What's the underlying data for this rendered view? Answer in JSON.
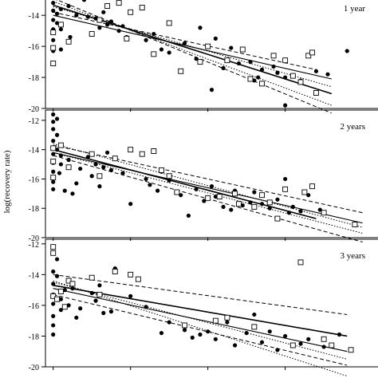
{
  "figure": {
    "ylabel": "log(recovery rate)"
  },
  "chart_data": [
    {
      "type": "scatter",
      "panel_label": "1 year",
      "xlim": [
        -10,
        420
      ],
      "ylim": [
        -20,
        -12.5
      ],
      "yticks": [
        -14,
        -16,
        -18,
        -20
      ],
      "ytick_labels": [
        "-14",
        "-16",
        "-18",
        "-20"
      ],
      "xticks": [
        0,
        100,
        200,
        300
      ],
      "filled_points": [
        [
          0,
          -13.2
        ],
        [
          0,
          -13.7
        ],
        [
          0,
          -14.3
        ],
        [
          0,
          -14.9
        ],
        [
          0,
          -15.6
        ],
        [
          0,
          -16.3
        ],
        [
          5,
          -12.9
        ],
        [
          5,
          -13.9
        ],
        [
          5,
          -14.5
        ],
        [
          10,
          -13.6
        ],
        [
          10,
          -14.9
        ],
        [
          10,
          -16.2
        ],
        [
          20,
          -13.4
        ],
        [
          22,
          -15.4
        ],
        [
          30,
          -14.0
        ],
        [
          40,
          -13.0
        ],
        [
          45,
          -14.1
        ],
        [
          55,
          -14.2
        ],
        [
          60,
          -14.8
        ],
        [
          65,
          -13.8
        ],
        [
          70,
          -14.6
        ],
        [
          75,
          -14.4
        ],
        [
          85,
          -15.0
        ],
        [
          90,
          -14.7
        ],
        [
          95,
          -15.4
        ],
        [
          120,
          -15.6
        ],
        [
          130,
          -15.2
        ],
        [
          140,
          -16.2
        ],
        [
          150,
          -16.4
        ],
        [
          170,
          -15.8
        ],
        [
          185,
          -16.8
        ],
        [
          190,
          -14.8
        ],
        [
          210,
          -15.5
        ],
        [
          220,
          -17.4
        ],
        [
          230,
          -16.1
        ],
        [
          240,
          -17.1
        ],
        [
          255,
          -17.0
        ],
        [
          260,
          -18.2
        ],
        [
          265,
          -18.0
        ],
        [
          270,
          -17.5
        ],
        [
          285,
          -17.3
        ],
        [
          290,
          -17.7
        ],
        [
          300,
          -18.0
        ],
        [
          320,
          -18.2
        ],
        [
          340,
          -17.6
        ],
        [
          355,
          -17.8
        ],
        [
          380,
          -16.3
        ],
        [
          205,
          -18.8
        ],
        [
          300,
          -19.8
        ]
      ],
      "open_points": [
        [
          0,
          -17.1
        ],
        [
          0,
          -16.1
        ],
        [
          0,
          -15.1
        ],
        [
          10,
          -14.6
        ],
        [
          20,
          -15.7
        ],
        [
          50,
          -15.2
        ],
        [
          60,
          -14.3
        ],
        [
          70,
          -13.4
        ],
        [
          85,
          -13.2
        ],
        [
          95,
          -15.5
        ],
        [
          100,
          -13.8
        ],
        [
          115,
          -13.5
        ],
        [
          130,
          -16.5
        ],
        [
          150,
          -14.5
        ],
        [
          165,
          -17.6
        ],
        [
          190,
          -17.0
        ],
        [
          200,
          -16.0
        ],
        [
          225,
          -16.9
        ],
        [
          245,
          -16.2
        ],
        [
          255,
          -18.1
        ],
        [
          270,
          -18.4
        ],
        [
          285,
          -16.6
        ],
        [
          300,
          -16.9
        ],
        [
          320,
          -18.3
        ],
        [
          330,
          -16.6
        ],
        [
          335,
          -16.4
        ],
        [
          340,
          -19.0
        ],
        [
          310,
          -17.9
        ]
      ],
      "fit_line": {
        "x": [
          0,
          360
        ],
        "y": [
          -13.35,
          -19.05
        ]
      },
      "dashed_lines": [
        {
          "x": [
            0,
            340
          ],
          "y": [
            -13.8,
            -17.5
          ]
        },
        {
          "x": [
            0,
            360
          ],
          "y": [
            -12.9,
            -20.3
          ]
        }
      ],
      "dotted_lines": [
        {
          "x": [
            0,
            360
          ],
          "y": [
            -13.45,
            -18.6
          ]
        },
        {
          "x": [
            0,
            360
          ],
          "y": [
            -13.1,
            -19.8
          ]
        }
      ],
      "lower_fit_line": {
        "x": [
          0,
          360
        ],
        "y": [
          -14.0,
          -18.1
        ]
      }
    },
    {
      "type": "scatter",
      "panel_label": "2 years",
      "xlim": [
        -10,
        420
      ],
      "ylim": [
        -20,
        -11.3
      ],
      "yticks": [
        -12,
        -14,
        -16,
        -18,
        -20
      ],
      "ytick_labels": [
        "-12",
        "-14",
        "-16",
        "-18",
        "-20"
      ],
      "xticks": [
        0,
        100,
        200,
        300
      ],
      "filled_points": [
        [
          0,
          -11.6
        ],
        [
          0,
          -12.1
        ],
        [
          0,
          -12.6
        ],
        [
          0,
          -13.4
        ],
        [
          0,
          -14.3
        ],
        [
          0,
          -14.9
        ],
        [
          0,
          -15.5
        ],
        [
          0,
          -16.2
        ],
        [
          0,
          -16.7
        ],
        [
          5,
          -11.9
        ],
        [
          5,
          -13.0
        ],
        [
          5,
          -14.0
        ],
        [
          8,
          -15.6
        ],
        [
          10,
          -14.4
        ],
        [
          10,
          -15.0
        ],
        [
          15,
          -16.8
        ],
        [
          20,
          -14.7
        ],
        [
          25,
          -17.0
        ],
        [
          30,
          -16.3
        ],
        [
          35,
          -15.3
        ],
        [
          45,
          -14.5
        ],
        [
          50,
          -15.8
        ],
        [
          55,
          -15.0
        ],
        [
          60,
          -16.5
        ],
        [
          65,
          -15.2
        ],
        [
          70,
          -14.2
        ],
        [
          75,
          -15.4
        ],
        [
          90,
          -15.6
        ],
        [
          100,
          -17.7
        ],
        [
          120,
          -16.0
        ],
        [
          125,
          -16.4
        ],
        [
          135,
          -16.8
        ],
        [
          140,
          -15.5
        ],
        [
          150,
          -16.1
        ],
        [
          165,
          -17.1
        ],
        [
          175,
          -18.5
        ],
        [
          185,
          -16.7
        ],
        [
          195,
          -17.5
        ],
        [
          205,
          -16.5
        ],
        [
          210,
          -17.2
        ],
        [
          220,
          -17.9
        ],
        [
          230,
          -18.1
        ],
        [
          235,
          -16.8
        ],
        [
          245,
          -17.8
        ],
        [
          255,
          -17.6
        ],
        [
          260,
          -16.9
        ],
        [
          270,
          -17.7
        ],
        [
          280,
          -18.0
        ],
        [
          290,
          -17.4
        ],
        [
          300,
          -16.0
        ],
        [
          310,
          -17.9
        ],
        [
          320,
          -18.2
        ],
        [
          330,
          -17.1
        ],
        [
          345,
          -18.1
        ],
        [
          305,
          -18.3
        ]
      ],
      "open_points": [
        [
          0,
          -13.9
        ],
        [
          0,
          -14.8
        ],
        [
          0,
          -15.9
        ],
        [
          10,
          -13.7
        ],
        [
          20,
          -15.2
        ],
        [
          50,
          -14.3
        ],
        [
          60,
          -15.8
        ],
        [
          80,
          -14.6
        ],
        [
          100,
          -14.0
        ],
        [
          115,
          -14.3
        ],
        [
          130,
          -14.1
        ],
        [
          140,
          -15.4
        ],
        [
          150,
          -15.8
        ],
        [
          160,
          -16.9
        ],
        [
          200,
          -17.3
        ],
        [
          215,
          -17.2
        ],
        [
          235,
          -17.0
        ],
        [
          240,
          -17.7
        ],
        [
          260,
          -17.9
        ],
        [
          280,
          -17.6
        ],
        [
          290,
          -18.7
        ],
        [
          300,
          -16.7
        ],
        [
          325,
          -16.9
        ],
        [
          335,
          -16.5
        ],
        [
          350,
          -18.3
        ],
        [
          390,
          -19.1
        ],
        [
          270,
          -17.1
        ]
      ],
      "fit_line": {
        "x": [
          0,
          340
        ],
        "y": [
          -14.0,
          -18.7
        ]
      },
      "dashed_lines": [
        {
          "x": [
            0,
            400
          ],
          "y": [
            -13.7,
            -18.3
          ]
        },
        {
          "x": [
            0,
            400
          ],
          "y": [
            -14.4,
            -20.3
          ]
        }
      ],
      "dotted_lines": [
        {
          "x": [
            0,
            400
          ],
          "y": [
            -13.6,
            -19.3
          ]
        },
        {
          "x": [
            0,
            400
          ],
          "y": [
            -14.2,
            -19.7
          ]
        }
      ],
      "lower_fit_line": {
        "x": [
          0,
          400
        ],
        "y": [
          -14.2,
          -19.0
        ]
      }
    },
    {
      "type": "scatter",
      "panel_label": "3 years",
      "xlim": [
        -10,
        420
      ],
      "ylim": [
        -20,
        -11.7
      ],
      "yticks": [
        -12,
        -14,
        -16,
        -18,
        -20
      ],
      "ytick_labels": [
        "-12",
        "-14",
        "-16",
        "-18",
        "-20"
      ],
      "xticks": [
        0,
        100,
        200,
        300
      ],
      "filled_points": [
        [
          0,
          -13.8
        ],
        [
          0,
          -14.6
        ],
        [
          0,
          -15.3
        ],
        [
          0,
          -15.9
        ],
        [
          0,
          -16.7
        ],
        [
          0,
          -17.3
        ],
        [
          0,
          -17.9
        ],
        [
          5,
          -13.0
        ],
        [
          5,
          -14.1
        ],
        [
          10,
          -15.6
        ],
        [
          10,
          -16.3
        ],
        [
          15,
          -15.0
        ],
        [
          20,
          -16.0
        ],
        [
          25,
          -14.9
        ],
        [
          30,
          -16.8
        ],
        [
          35,
          -16.2
        ],
        [
          50,
          -15.2
        ],
        [
          55,
          -15.7
        ],
        [
          60,
          -14.7
        ],
        [
          65,
          -16.5
        ],
        [
          75,
          -16.4
        ],
        [
          80,
          -13.6
        ],
        [
          100,
          -15.4
        ],
        [
          120,
          -16.1
        ],
        [
          140,
          -17.8
        ],
        [
          150,
          -17.1
        ],
        [
          170,
          -17.6
        ],
        [
          180,
          -18.1
        ],
        [
          190,
          -17.9
        ],
        [
          200,
          -17.7
        ],
        [
          210,
          -18.2
        ],
        [
          225,
          -17.1
        ],
        [
          235,
          -18.6
        ],
        [
          250,
          -17.8
        ],
        [
          260,
          -16.6
        ],
        [
          270,
          -18.4
        ],
        [
          280,
          -17.7
        ],
        [
          290,
          -18.9
        ],
        [
          300,
          -18.0
        ],
        [
          320,
          -18.5
        ],
        [
          330,
          -18.2
        ],
        [
          350,
          -18.7
        ],
        [
          370,
          -17.9
        ]
      ],
      "open_points": [
        [
          0,
          -12.2
        ],
        [
          0,
          -12.6
        ],
        [
          0,
          -15.4
        ],
        [
          5,
          -15.6
        ],
        [
          10,
          -15.1
        ],
        [
          15,
          -16.1
        ],
        [
          20,
          -14.4
        ],
        [
          25,
          -14.6
        ],
        [
          50,
          -14.2
        ],
        [
          60,
          -15.3
        ],
        [
          80,
          -13.8
        ],
        [
          100,
          -14.0
        ],
        [
          110,
          -14.3
        ],
        [
          170,
          -17.3
        ],
        [
          210,
          -17.0
        ],
        [
          225,
          -16.8
        ],
        [
          260,
          -17.4
        ],
        [
          310,
          -18.6
        ],
        [
          320,
          -13.2
        ],
        [
          360,
          -18.6
        ],
        [
          385,
          -18.9
        ],
        [
          350,
          -18.2
        ]
      ],
      "fit_line": {
        "x": [
          0,
          380
        ],
        "y": [
          -14.7,
          -18.0
        ]
      },
      "dashed_lines": [
        {
          "x": [
            0,
            380
          ],
          "y": [
            -14.0,
            -16.6
          ]
        },
        {
          "x": [
            0,
            380
          ],
          "y": [
            -15.3,
            -19.9
          ]
        }
      ],
      "dotted_lines": [
        {
          "x": [
            0,
            380
          ],
          "y": [
            -14.4,
            -20.6
          ]
        },
        {
          "x": [
            0,
            380
          ],
          "y": [
            -14.5,
            -19.5
          ]
        }
      ],
      "lower_fit_line": {
        "x": [
          0,
          380
        ],
        "y": [
          -14.9,
          -19.0
        ]
      }
    }
  ]
}
